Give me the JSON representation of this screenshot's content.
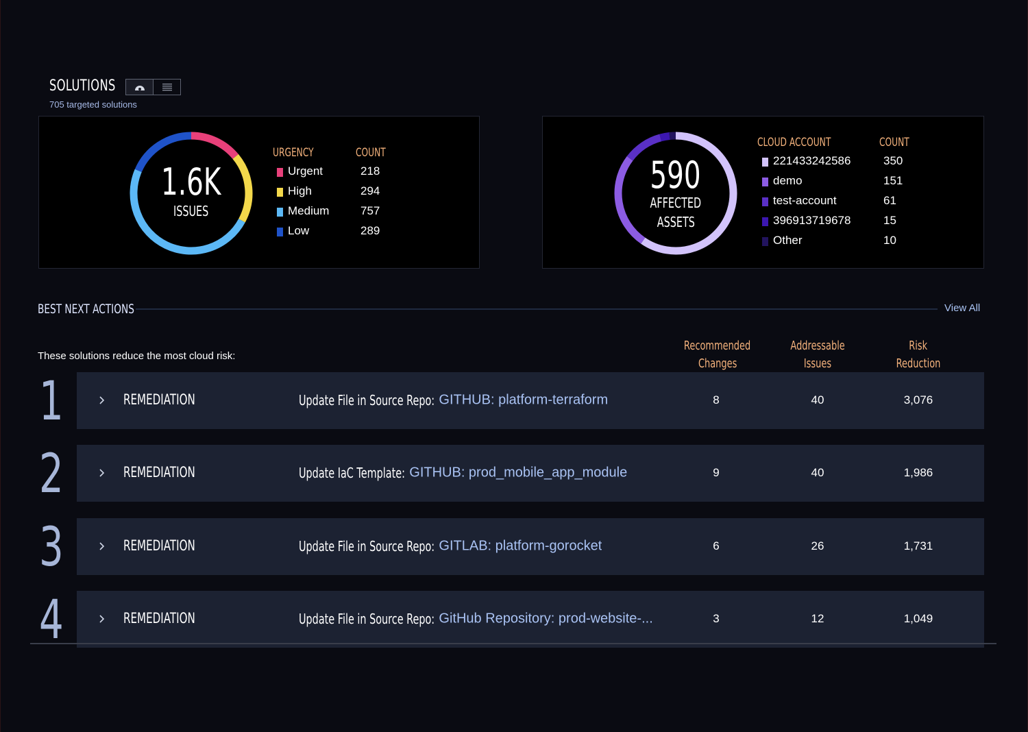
{
  "header": {
    "title": "SOLUTIONS",
    "subtitle": "705 targeted solutions",
    "view_toggle": [
      "dashboard-icon",
      "list-icon"
    ]
  },
  "urgency_panel": {
    "center_value": "1.6K",
    "center_label": "ISSUES",
    "legend_heading": "URGENCY",
    "count_heading": "COUNT",
    "items": [
      {
        "label": "Urgent",
        "count": "218",
        "value": 218,
        "color": "#e8407a"
      },
      {
        "label": "High",
        "count": "294",
        "value": 294,
        "color": "#f3d84b"
      },
      {
        "label": "Medium",
        "count": "757",
        "value": 757,
        "color": "#5cb8f6"
      },
      {
        "label": "Low",
        "count": "289",
        "value": 289,
        "color": "#1f53c9"
      }
    ]
  },
  "assets_panel": {
    "center_value": "590",
    "center_label_1": "AFFECTED",
    "center_label_2": "ASSETS",
    "legend_heading": "CLOUD ACCOUNT",
    "count_heading": "COUNT",
    "items": [
      {
        "label": "221433242586",
        "count": "350",
        "value": 350,
        "color": "#d2c3fb"
      },
      {
        "label": "demo",
        "count": "151",
        "value": 151,
        "color": "#8c5ce3"
      },
      {
        "label": "test-account",
        "count": "61",
        "value": 61,
        "color": "#5a30c6"
      },
      {
        "label": "396913719678",
        "count": "15",
        "value": 15,
        "color": "#3c17b0"
      },
      {
        "label": "Other",
        "count": "10",
        "value": 10,
        "color": "#22145e"
      }
    ]
  },
  "best_next_actions": {
    "title": "BEST NEXT ACTIONS",
    "view_all": "View All",
    "subtitle": "These solutions reduce the most cloud risk:",
    "columns": {
      "recommended_1": "Recommended",
      "recommended_2": "Changes",
      "addressable_1": "Addressable",
      "addressable_2": "Issues",
      "risk_1": "Risk",
      "risk_2": "Reduction"
    },
    "rows": [
      {
        "rank": "1",
        "kind": "REMEDIATION",
        "prefix": "Update File in Source Repo:",
        "repo": "GITHUB: platform-terraform",
        "changes": "8",
        "issues": "40",
        "risk": "3,076"
      },
      {
        "rank": "2",
        "kind": "REMEDIATION",
        "prefix": "Update IaC Template:",
        "repo": "GITHUB: prod_mobile_app_module",
        "changes": "9",
        "issues": "40",
        "risk": "1,986"
      },
      {
        "rank": "3",
        "kind": "REMEDIATION",
        "prefix": "Update File in Source Repo:",
        "repo": "GITLAB: platform-gorocket",
        "changes": "6",
        "issues": "26",
        "risk": "1,731"
      },
      {
        "rank": "4",
        "kind": "REMEDIATION",
        "prefix": "Update File in Source Repo:",
        "repo": "GitHub Repository: prod-website-...",
        "changes": "3",
        "issues": "12",
        "risk": "1,049"
      }
    ]
  }
}
